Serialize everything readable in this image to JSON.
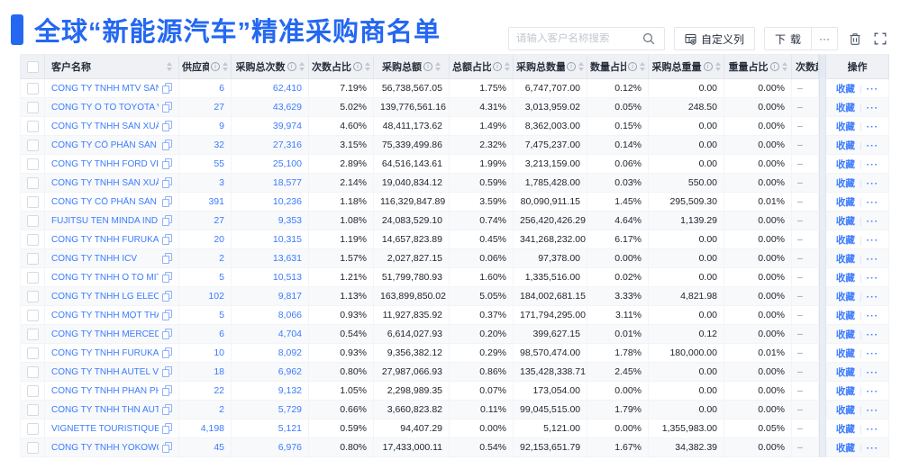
{
  "page": {
    "title": "全球“新能源汽车”精准采购商名单"
  },
  "toolbar": {
    "search_placeholder": "请输入客户名称搜索",
    "customize_columns_label": "自定义列",
    "download_label": "下载",
    "more_label": "···"
  },
  "colors": {
    "accent_blue": "#2468F2",
    "link_blue": "#3B7BFE",
    "header_bg": "#EFF1F5",
    "stripe_bg": "#F8F9FB"
  },
  "table": {
    "columns": [
      {
        "label": "客户名称",
        "info": false,
        "sortable": true
      },
      {
        "label": "供应商",
        "info": true,
        "sortable": true
      },
      {
        "label": "采购总次数",
        "info": true,
        "sortable": true
      },
      {
        "label": "次数占比",
        "info": true,
        "sortable": true
      },
      {
        "label": "采购总额",
        "info": true,
        "sortable": true
      },
      {
        "label": "总额占比",
        "info": true,
        "sortable": true
      },
      {
        "label": "采购总数量",
        "info": true,
        "sortable": true
      },
      {
        "label": "数量占比",
        "info": true,
        "sortable": true
      },
      {
        "label": "采购总重量",
        "info": true,
        "sortable": true
      },
      {
        "label": "重量占比",
        "info": true,
        "sortable": true
      },
      {
        "label": "次数趋势",
        "info": false,
        "sortable": false
      },
      {
        "label": "操作",
        "info": false,
        "sortable": false
      }
    ],
    "actions": {
      "favorite_label": "收藏",
      "separator": "|",
      "more_label": "···"
    },
    "rows": [
      {
        "name": "CÔNG TY TNHH MTV SẢN XUẤ...",
        "values": [
          "6",
          "62,410",
          "7.19%",
          "56,738,567.05",
          "1.75%",
          "6,747,707.00",
          "0.12%",
          "0.00",
          "0.00%"
        ],
        "trend": "–"
      },
      {
        "name": "CÔNG TY Ô TÔ TOYOTA VIỆT ...",
        "values": [
          "27",
          "43,629",
          "5.02%",
          "139,776,561.16",
          "4.31%",
          "3,013,959.02",
          "0.05%",
          "248.50",
          "0.00%"
        ],
        "trend": "–"
      },
      {
        "name": "CÔNG TY TNHH SẢN XUẤT VÀ ...",
        "values": [
          "9",
          "39,974",
          "4.60%",
          "48,411,173.62",
          "1.49%",
          "8,362,003.00",
          "0.15%",
          "0.00",
          "0.00%"
        ],
        "trend": "–"
      },
      {
        "name": "CÔNG TY CỔ PHẦN SẢN XUẤT...",
        "values": [
          "32",
          "27,316",
          "3.15%",
          "75,339,499.86",
          "2.32%",
          "7,475,237.00",
          "0.14%",
          "0.00",
          "0.00%"
        ],
        "trend": "–"
      },
      {
        "name": "CÔNG TY TNHH FORD VIỆT NAM",
        "values": [
          "55",
          "25,100",
          "2.89%",
          "64,516,143.61",
          "1.99%",
          "3,213,159.00",
          "0.06%",
          "0.00",
          "0.00%"
        ],
        "trend": "–"
      },
      {
        "name": "CÔNG TY TNHH SẢN XUẤT VÀ ...",
        "values": [
          "3",
          "18,577",
          "2.14%",
          "19,040,834.12",
          "0.59%",
          "1,785,428.00",
          "0.03%",
          "550.00",
          "0.00%"
        ],
        "trend": "–"
      },
      {
        "name": "CÔNG TY CỔ PHẦN SẢN XUẤT...",
        "values": [
          "391",
          "10,236",
          "1.18%",
          "116,329,847.89",
          "3.59%",
          "80,090,911.15",
          "1.45%",
          "295,509.30",
          "0.01%"
        ],
        "trend": "–"
      },
      {
        "name": "FUJITSU TEN MINDA INDIA PVT...",
        "values": [
          "27",
          "9,353",
          "1.08%",
          "24,083,529.10",
          "0.74%",
          "256,420,426.29",
          "4.64%",
          "1,139.29",
          "0.00%"
        ],
        "trend": "–"
      },
      {
        "name": "CÔNG TY TNHH FURUKAWA A...",
        "values": [
          "20",
          "10,315",
          "1.19%",
          "14,657,823.89",
          "0.45%",
          "341,268,232.00",
          "6.17%",
          "0.00",
          "0.00%"
        ],
        "trend": "–"
      },
      {
        "name": "CÔNG TY TNHH ICV",
        "values": [
          "2",
          "13,631",
          "1.57%",
          "2,027,827.15",
          "0.06%",
          "97,378.00",
          "0.00%",
          "0.00",
          "0.00%"
        ],
        "trend": "–"
      },
      {
        "name": "CÔNG TY TNHH Ô TÔ MITSUBI...",
        "values": [
          "5",
          "10,513",
          "1.21%",
          "51,799,780.93",
          "1.60%",
          "1,335,516.00",
          "0.02%",
          "0.00",
          "0.00%"
        ],
        "trend": "–"
      },
      {
        "name": "CÔNG TY TNHH LG ELECTRON...",
        "values": [
          "102",
          "9,817",
          "1.13%",
          "163,899,850.02",
          "5.05%",
          "184,002,681.15",
          "3.33%",
          "4,821.98",
          "0.00%"
        ],
        "trend": "–"
      },
      {
        "name": "CÔNG TY TNHH MỘT THÀNH V...",
        "values": [
          "5",
          "8,066",
          "0.93%",
          "11,927,835.92",
          "0.37%",
          "171,794,295.00",
          "3.11%",
          "0.00",
          "0.00%"
        ],
        "trend": "–"
      },
      {
        "name": "CÔNG TY TNHH MERCEDES-B...",
        "values": [
          "6",
          "4,704",
          "0.54%",
          "6,614,027.93",
          "0.20%",
          "399,627.15",
          "0.01%",
          "0.12",
          "0.00%"
        ],
        "trend": "–"
      },
      {
        "name": "CÔNG TY TNHH FURUKAWA A...",
        "values": [
          "10",
          "8,092",
          "0.93%",
          "9,356,382.12",
          "0.29%",
          "98,570,474.00",
          "1.78%",
          "180,000.00",
          "0.01%"
        ],
        "trend": "–"
      },
      {
        "name": "CÔNG TY TNHH AUTEL VIỆT N...",
        "values": [
          "18",
          "6,962",
          "0.80%",
          "27,987,066.93",
          "0.86%",
          "135,428,338.71",
          "2.45%",
          "0.00",
          "0.00%"
        ],
        "trend": "–"
      },
      {
        "name": "CÔNG TY TNHH PHÂN PHỐI T...",
        "values": [
          "22",
          "9,132",
          "1.05%",
          "2,298,989.35",
          "0.07%",
          "173,054.00",
          "0.00%",
          "0.00",
          "0.00%"
        ],
        "trend": "–"
      },
      {
        "name": "CÔNG TY TNHH THN AUTOPAR...",
        "values": [
          "2",
          "5,729",
          "0.66%",
          "3,660,823.82",
          "0.11%",
          "99,045,515.00",
          "1.79%",
          "0.00",
          "0.00%"
        ],
        "trend": "–"
      },
      {
        "name": "VIGNETTE TOURISTIQUE G UNI...",
        "values": [
          "4,198",
          "5,121",
          "0.59%",
          "94,407.29",
          "0.00%",
          "5,121.00",
          "0.00%",
          "1,355,983.00",
          "0.05%"
        ],
        "trend": "–"
      },
      {
        "name": "CÔNG TY TNHH YOKOWO VIỆT...",
        "values": [
          "45",
          "6,976",
          "0.80%",
          "17,433,000.11",
          "0.54%",
          "92,153,651.79",
          "1.67%",
          "34,382.39",
          "0.00%"
        ],
        "trend": "–"
      }
    ]
  }
}
